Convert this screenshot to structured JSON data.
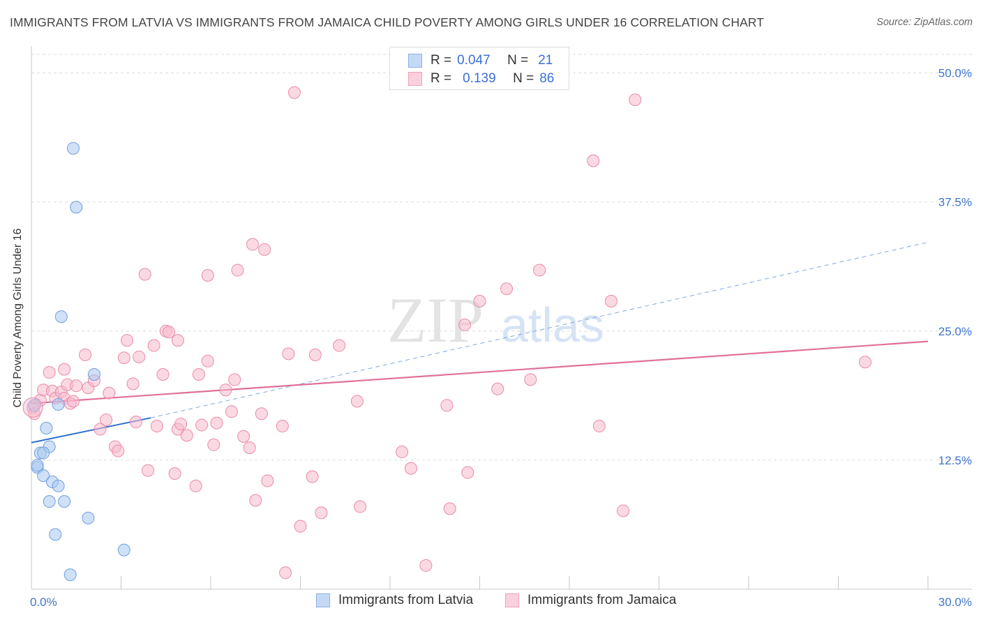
{
  "title": "IMMIGRANTS FROM LATVIA VS IMMIGRANTS FROM JAMAICA CHILD POVERTY AMONG GIRLS UNDER 16 CORRELATION CHART",
  "source": "Source: ZipAtlas.com",
  "watermark": {
    "zip": "ZIP",
    "atlas": "atlas"
  },
  "legend_top": {
    "rows": [
      {
        "r_label": "R =",
        "r_value": "0.047",
        "n_label": "N =",
        "n_value": "21",
        "color": "#a9c8f0"
      },
      {
        "r_label": "R =",
        "r_value": "0.139",
        "n_label": "N =",
        "n_value": "86",
        "color": "#f7b9cc"
      }
    ]
  },
  "chart_data": {
    "type": "scatter",
    "title": "IMMIGRANTS FROM LATVIA VS IMMIGRANTS FROM JAMAICA CHILD POVERTY AMONG GIRLS UNDER 16 CORRELATION CHART",
    "xlabel": "",
    "ylabel": "Child Poverty Among Girls Under 16",
    "xlim": [
      0,
      30
    ],
    "ylim": [
      0,
      52
    ],
    "x_tick_labels": {
      "left": "0.0%",
      "right": "30.0%"
    },
    "y_ticks": [
      12.5,
      25.0,
      37.5,
      50.0
    ],
    "y_tick_labels": [
      "12.5%",
      "25.0%",
      "37.5%",
      "50.0%"
    ],
    "series": [
      {
        "name": "Immigrants from Latvia",
        "color": "#a9c8f0",
        "stroke": "#6d9ee0",
        "trend_color": "#2f6fcf",
        "trend": {
          "x0": 0.0,
          "y0": 14.2,
          "x1": 4.0,
          "y1": 16.6,
          "dash_x1": 30.0,
          "dash_y1": 33.6
        },
        "points": [
          [
            0.1,
            17.8
          ],
          [
            0.2,
            11.8
          ],
          [
            0.3,
            13.2
          ],
          [
            0.4,
            11.0
          ],
          [
            0.5,
            15.6
          ],
          [
            0.6,
            8.5
          ],
          [
            0.6,
            13.8
          ],
          [
            0.7,
            10.4
          ],
          [
            0.8,
            5.3
          ],
          [
            0.9,
            10.0
          ],
          [
            0.9,
            17.9
          ],
          [
            1.0,
            26.4
          ],
          [
            1.1,
            8.5
          ],
          [
            1.3,
            1.4
          ],
          [
            1.4,
            42.7
          ],
          [
            1.5,
            37.0
          ],
          [
            1.9,
            6.9
          ],
          [
            2.1,
            20.8
          ],
          [
            3.1,
            3.8
          ],
          [
            0.2,
            12.0
          ],
          [
            0.4,
            13.2
          ]
        ]
      },
      {
        "name": "Immigrants from Jamaica",
        "color": "#f7b9cc",
        "stroke": "#e98aa8",
        "trend_color": "#e0709a",
        "trend": {
          "x0": 0.0,
          "y0": 18.0,
          "x1": 30.0,
          "y1": 24.0
        },
        "points": [
          [
            0.05,
            17.6
          ],
          [
            0.1,
            17.0
          ],
          [
            0.3,
            18.3
          ],
          [
            0.4,
            19.3
          ],
          [
            0.6,
            21.0
          ],
          [
            0.7,
            19.2
          ],
          [
            0.8,
            18.5
          ],
          [
            1.0,
            19.1
          ],
          [
            1.1,
            18.5
          ],
          [
            1.1,
            21.3
          ],
          [
            1.2,
            19.8
          ],
          [
            1.3,
            18.0
          ],
          [
            1.4,
            18.2
          ],
          [
            1.5,
            19.7
          ],
          [
            1.8,
            22.7
          ],
          [
            1.9,
            19.5
          ],
          [
            2.1,
            20.2
          ],
          [
            2.3,
            15.5
          ],
          [
            2.5,
            16.4
          ],
          [
            2.6,
            19.0
          ],
          [
            2.8,
            13.8
          ],
          [
            2.9,
            13.4
          ],
          [
            3.1,
            22.4
          ],
          [
            3.2,
            24.1
          ],
          [
            3.4,
            19.9
          ],
          [
            3.5,
            16.2
          ],
          [
            3.6,
            22.5
          ],
          [
            3.8,
            30.5
          ],
          [
            3.9,
            11.5
          ],
          [
            4.1,
            23.6
          ],
          [
            4.2,
            15.8
          ],
          [
            4.4,
            20.8
          ],
          [
            4.5,
            25.0
          ],
          [
            4.6,
            24.9
          ],
          [
            4.8,
            11.2
          ],
          [
            4.9,
            24.1
          ],
          [
            4.9,
            15.5
          ],
          [
            5.0,
            16.0
          ],
          [
            5.2,
            14.9
          ],
          [
            5.5,
            10.0
          ],
          [
            5.6,
            20.8
          ],
          [
            5.7,
            15.9
          ],
          [
            5.9,
            30.4
          ],
          [
            5.9,
            22.1
          ],
          [
            6.1,
            14.0
          ],
          [
            6.2,
            16.1
          ],
          [
            6.5,
            19.3
          ],
          [
            6.7,
            17.2
          ],
          [
            6.8,
            20.3
          ],
          [
            6.9,
            30.9
          ],
          [
            7.1,
            14.8
          ],
          [
            7.3,
            13.7
          ],
          [
            7.4,
            33.4
          ],
          [
            7.5,
            8.6
          ],
          [
            7.7,
            17.0
          ],
          [
            7.8,
            32.9
          ],
          [
            7.9,
            10.5
          ],
          [
            8.4,
            15.8
          ],
          [
            8.5,
            1.6
          ],
          [
            8.6,
            22.8
          ],
          [
            8.8,
            48.1
          ],
          [
            9.0,
            6.1
          ],
          [
            9.4,
            10.9
          ],
          [
            9.5,
            22.7
          ],
          [
            9.7,
            7.4
          ],
          [
            10.3,
            23.6
          ],
          [
            10.9,
            18.2
          ],
          [
            11.0,
            8.0
          ],
          [
            12.4,
            13.3
          ],
          [
            12.7,
            11.7
          ],
          [
            13.2,
            2.3
          ],
          [
            13.9,
            17.8
          ],
          [
            14.0,
            7.8
          ],
          [
            14.5,
            25.6
          ],
          [
            14.6,
            11.3
          ],
          [
            15.0,
            27.9
          ],
          [
            15.6,
            19.4
          ],
          [
            15.9,
            29.1
          ],
          [
            16.7,
            20.3
          ],
          [
            17.0,
            30.9
          ],
          [
            18.8,
            41.5
          ],
          [
            19.0,
            15.8
          ],
          [
            19.4,
            27.9
          ],
          [
            19.8,
            7.6
          ],
          [
            20.2,
            47.4
          ],
          [
            27.9,
            22.0
          ]
        ]
      }
    ]
  },
  "legend_bottom": {
    "items": [
      {
        "label": "Immigrants from Latvia",
        "color": "#a9c8f0"
      },
      {
        "label": "Immigrants from Jamaica",
        "color": "#f7b9cc"
      }
    ]
  }
}
